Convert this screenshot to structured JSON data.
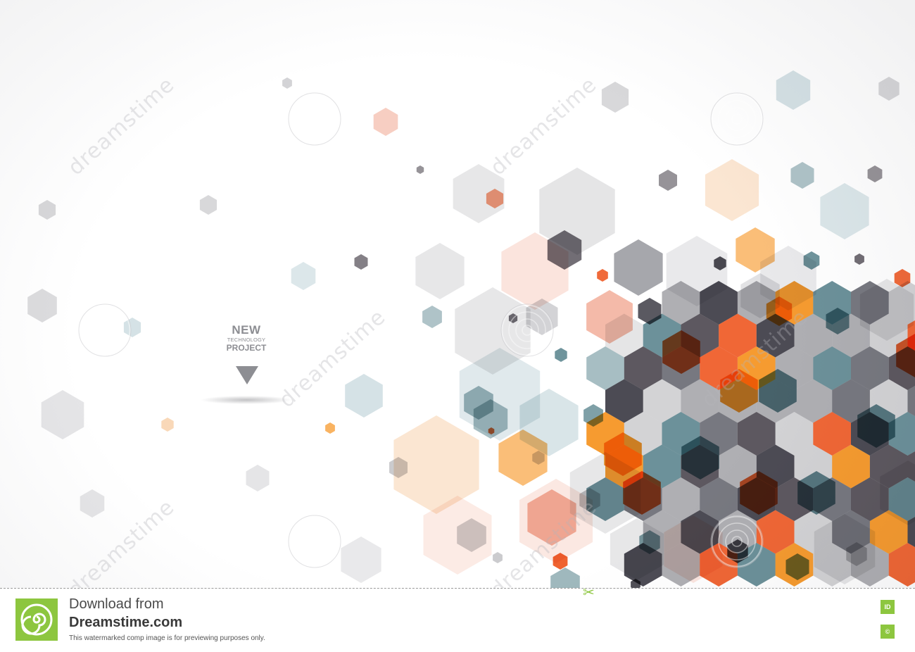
{
  "headline": {
    "line1": "NEW",
    "line2": "TECHNOLOGY",
    "line3": "PROJECT"
  },
  "watermark": {
    "text": "dreamstime",
    "color": "#bdbdc2"
  },
  "footer": {
    "download_label": "Download from",
    "brand": "Dreamstime.com",
    "note": "This watermarked comp image is for previewing purposes only.",
    "id_badge": "ID",
    "copyright_badge": "©",
    "accent_color": "#8dc63f"
  },
  "icons": {
    "logo": "dreamstime-spiral-logo-icon",
    "cut": "scissors-icon",
    "arrow": "down-triangle-icon"
  },
  "palette": {
    "dark": "#3d3b45",
    "charcoal": "#4f4a52",
    "slate": "#6b6c75",
    "gray": "#a8a8ad",
    "light_gray": "#cfcfd2",
    "teal": "#5f8891",
    "light_teal": "#b9cfd5",
    "orange": "#ef5a24",
    "amber": "#f6921e",
    "peach": "#f7c89a",
    "salmon": "#ef9d85",
    "pink": "#f8d2c6"
  }
}
